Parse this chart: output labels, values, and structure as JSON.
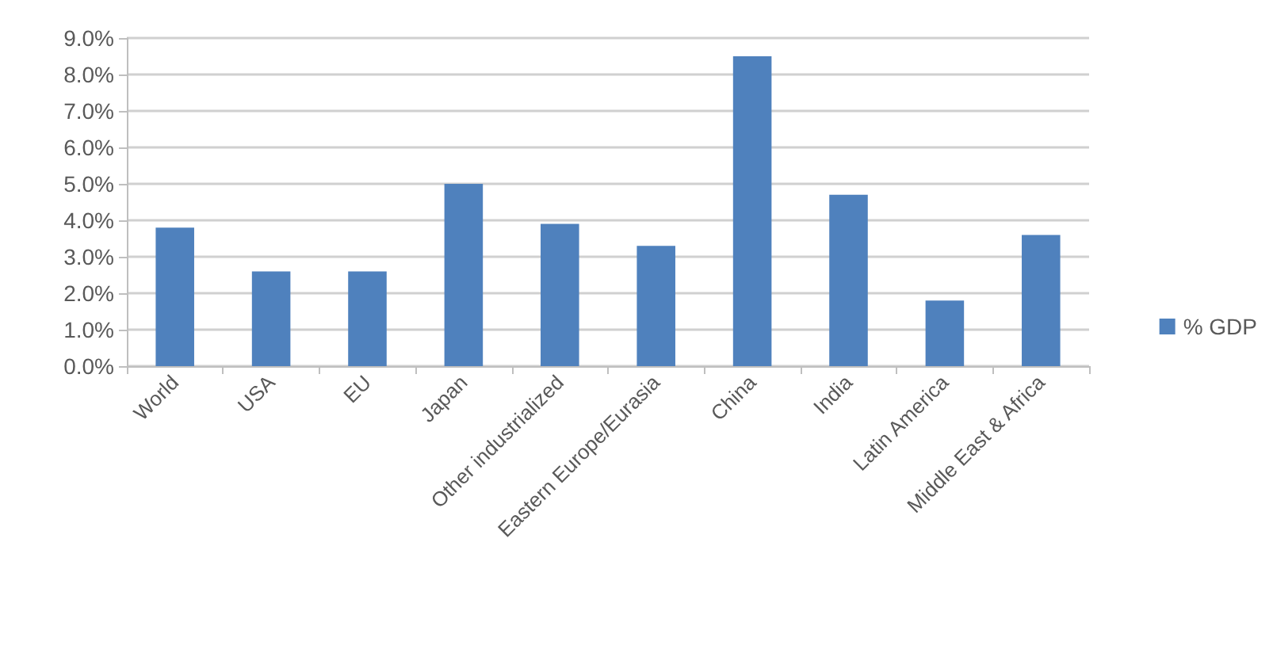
{
  "chart_data": {
    "type": "bar",
    "categories": [
      "World",
      "USA",
      "EU",
      "Japan",
      "Other industrialized",
      "Eastern Europe/Eurasia",
      "China",
      "India",
      "Latin America",
      "Middle East & Africa"
    ],
    "series": [
      {
        "name": "% GDP",
        "color": "#4f81bd",
        "values": [
          3.8,
          2.6,
          2.6,
          5.0,
          3.9,
          3.3,
          8.5,
          4.7,
          1.8,
          3.6
        ]
      }
    ],
    "ylim": [
      0,
      9
    ],
    "yticks": [
      {
        "value": 0,
        "label": "0.0%"
      },
      {
        "value": 1,
        "label": "1.0%"
      },
      {
        "value": 2,
        "label": "2.0%"
      },
      {
        "value": 3,
        "label": "3.0%"
      },
      {
        "value": 4,
        "label": "4.0%"
      },
      {
        "value": 5,
        "label": "5.0%"
      },
      {
        "value": 6,
        "label": "6.0%"
      },
      {
        "value": 7,
        "label": "7.0%"
      },
      {
        "value": 8,
        "label": "8.0%"
      },
      {
        "value": 9,
        "label": "9.0%"
      }
    ],
    "grid": "y",
    "legend": "right"
  }
}
